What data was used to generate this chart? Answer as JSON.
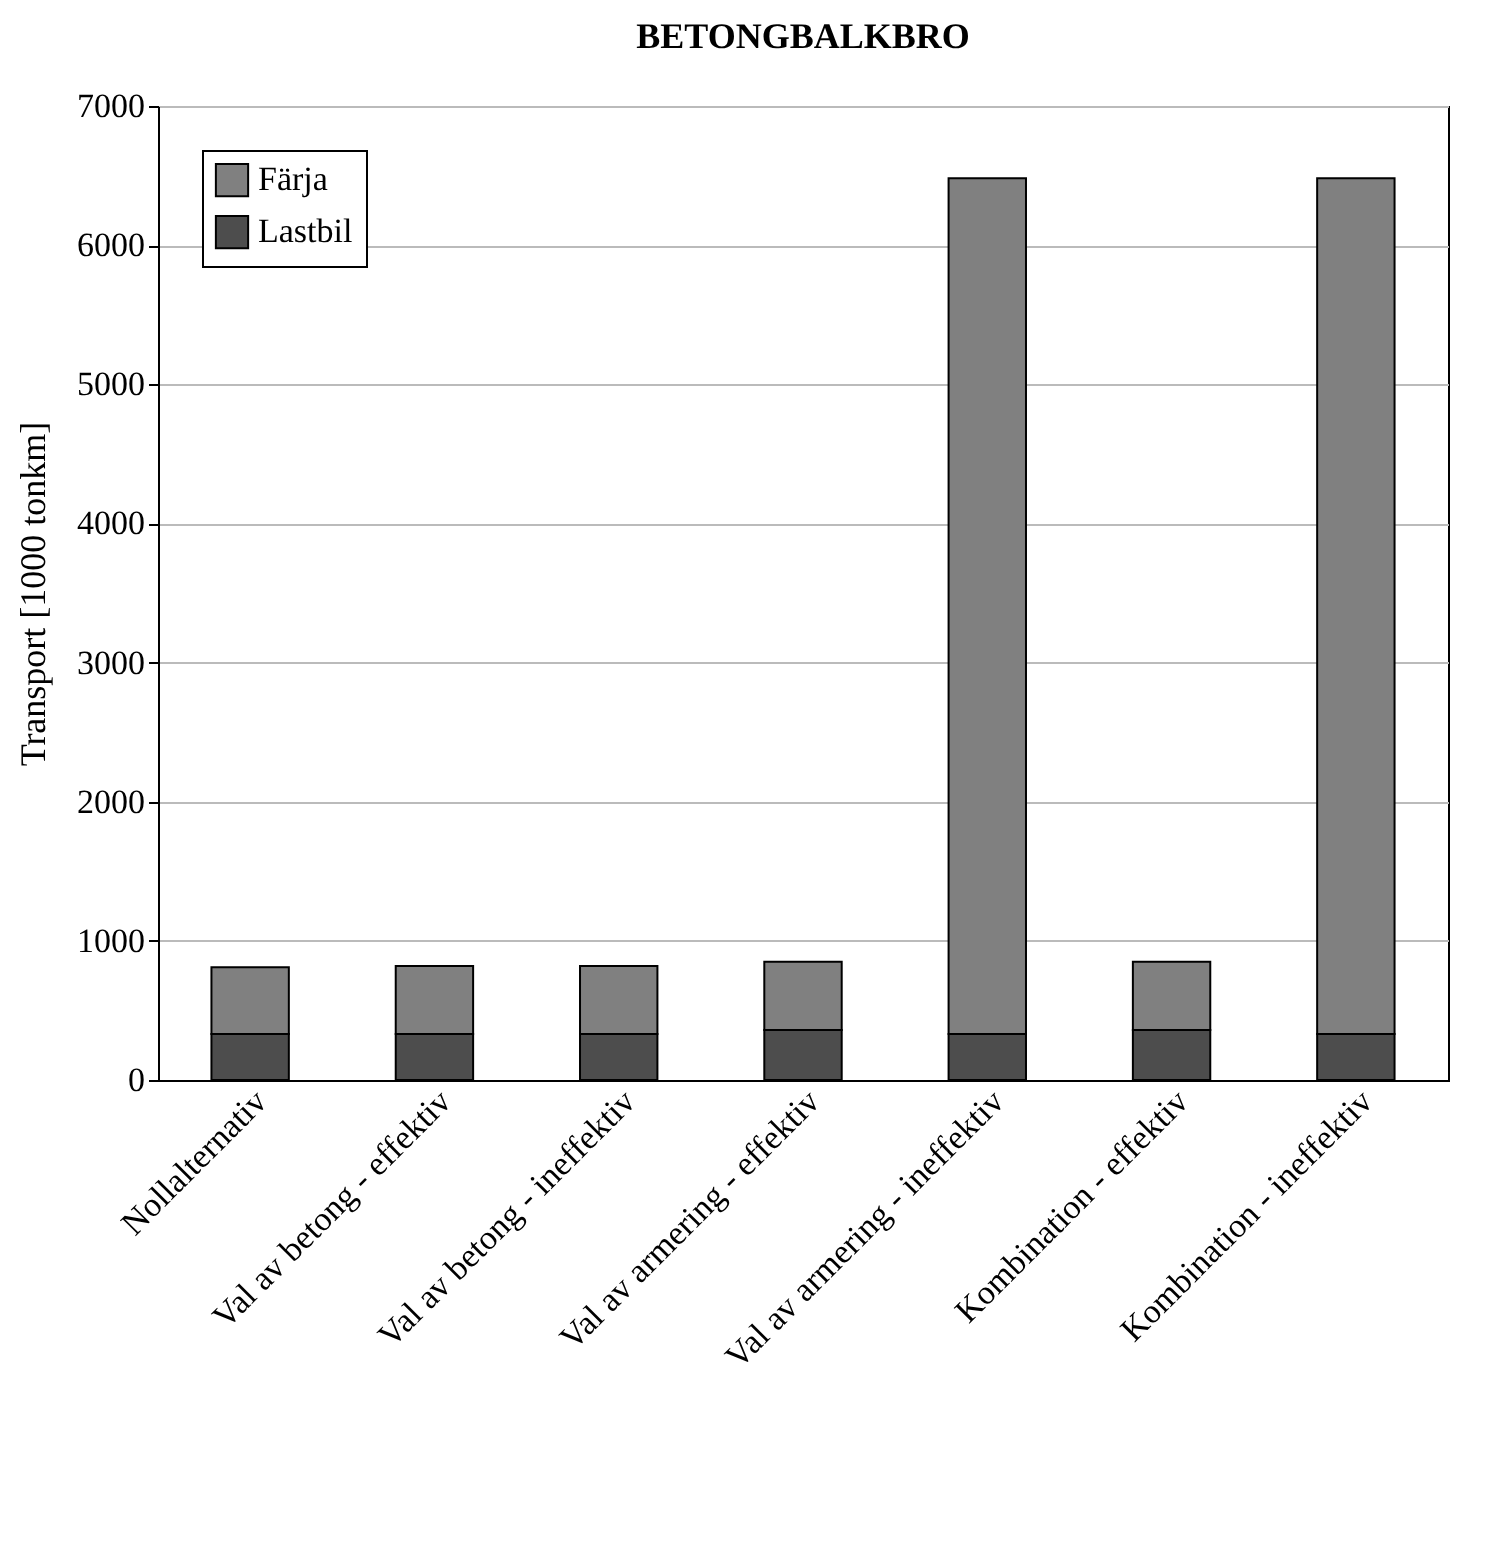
{
  "chart_data": {
    "type": "bar",
    "title": "BETONGBALKBRO",
    "ylabel": "Transport [1000 tonkm]",
    "categories": [
      "Nollalternativ",
      "Val av betong - effektiv",
      "Val av betong - ineffektiv",
      "Val av armering - effektiv",
      "Val av armering - ineffektiv",
      "Kombination - effektiv",
      "Kombination - ineffektiv"
    ],
    "series": [
      {
        "name": "Lastbil",
        "color": "#4d4d4d",
        "values": [
          330,
          330,
          330,
          360,
          330,
          360,
          330
        ]
      },
      {
        "name": "Färja",
        "color": "#808080",
        "values": [
          480,
          490,
          490,
          490,
          6150,
          490,
          6150
        ]
      }
    ],
    "stacked": true,
    "ylim": [
      0,
      7000
    ],
    "yticks": [
      0,
      1000,
      2000,
      3000,
      4000,
      5000,
      6000,
      7000
    ],
    "grid": "y",
    "legend": "top left"
  }
}
